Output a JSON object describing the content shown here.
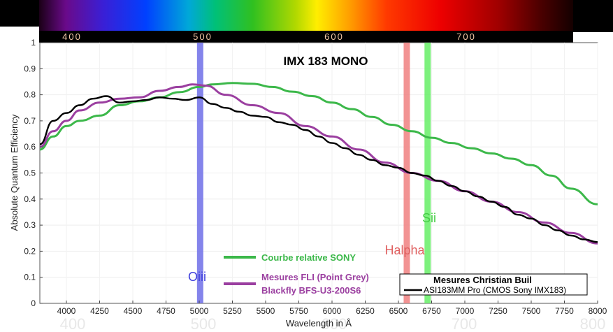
{
  "chart_data": {
    "type": "line",
    "title": "IMX 183 MONO",
    "xlabel": "Wavelength in Å",
    "ylabel": "Absolute Quantum Efficiency",
    "xlim": [
      3800,
      8000
    ],
    "ylim": [
      0,
      1
    ],
    "xticks": [
      4000,
      4250,
      4500,
      4750,
      5000,
      5250,
      5500,
      5750,
      6000,
      6250,
      6500,
      6750,
      7000,
      7250,
      7500,
      7750,
      8000
    ],
    "yticks": [
      0,
      0.1,
      0.2,
      0.3,
      0.4,
      0.5,
      0.6,
      0.7,
      0.8,
      0.9,
      1
    ],
    "grid": true,
    "spectrum_labels": [
      "400",
      "500",
      "600",
      "700"
    ],
    "ghost_labels": [
      "400",
      "500",
      "600",
      "700",
      "800"
    ],
    "series": [
      {
        "name": "Courbe relative SONY",
        "color": "#3cb84a",
        "x": [
          3800,
          3900,
          4000,
          4100,
          4250,
          4400,
          4550,
          4700,
          4850,
          5000,
          5100,
          5250,
          5400,
          5550,
          5700,
          5850,
          6000,
          6150,
          6300,
          6450,
          6600,
          6750,
          6900,
          7050,
          7200,
          7350,
          7500,
          7650,
          7800,
          8000
        ],
        "values": [
          0.59,
          0.64,
          0.68,
          0.7,
          0.72,
          0.76,
          0.775,
          0.79,
          0.81,
          0.83,
          0.84,
          0.845,
          0.842,
          0.83,
          0.812,
          0.795,
          0.77,
          0.745,
          0.715,
          0.685,
          0.66,
          0.635,
          0.615,
          0.595,
          0.575,
          0.555,
          0.53,
          0.49,
          0.44,
          0.38
        ]
      },
      {
        "name": "Mesures FLI (Point Grey) Blackfly BFS-U3-200S6",
        "color": "#9b3fa0",
        "x": [
          3800,
          3900,
          4000,
          4100,
          4250,
          4400,
          4550,
          4700,
          4850,
          4950,
          5050,
          5200,
          5400,
          5600,
          5800,
          6000,
          6200,
          6400,
          6600,
          6800,
          7000,
          7200,
          7400,
          7600,
          7800,
          8000
        ],
        "values": [
          0.6,
          0.66,
          0.7,
          0.74,
          0.77,
          0.785,
          0.79,
          0.815,
          0.83,
          0.84,
          0.835,
          0.8,
          0.76,
          0.73,
          0.68,
          0.64,
          0.59,
          0.54,
          0.5,
          0.47,
          0.43,
          0.39,
          0.35,
          0.31,
          0.27,
          0.23
        ]
      },
      {
        "name": "ASI183MM Pro (CMOS Sony IMX183)",
        "color": "#000000",
        "x": [
          3800,
          3900,
          4000,
          4100,
          4200,
          4300,
          4400,
          4500,
          4600,
          4700,
          4800,
          4900,
          5000,
          5100,
          5200,
          5300,
          5400,
          5500,
          5600,
          5700,
          5800,
          5900,
          6000,
          6100,
          6200,
          6300,
          6400,
          6500,
          6600,
          6700,
          6800,
          6900,
          7000,
          7100,
          7200,
          7300,
          7400,
          7500,
          7600,
          7700,
          7800,
          7900,
          8000
        ],
        "values": [
          0.61,
          0.7,
          0.73,
          0.76,
          0.785,
          0.795,
          0.77,
          0.775,
          0.78,
          0.79,
          0.785,
          0.78,
          0.79,
          0.765,
          0.75,
          0.735,
          0.72,
          0.715,
          0.695,
          0.685,
          0.665,
          0.64,
          0.615,
          0.595,
          0.57,
          0.55,
          0.53,
          0.52,
          0.5,
          0.49,
          0.47,
          0.45,
          0.43,
          0.41,
          0.39,
          0.37,
          0.34,
          0.325,
          0.3,
          0.28,
          0.26,
          0.245,
          0.235
        ]
      }
    ],
    "bands": [
      {
        "name": "Oiii",
        "x": 5007,
        "color": "#6f6fe8"
      },
      {
        "name": "Halpha",
        "x": 6563,
        "color": "#f08080"
      },
      {
        "name": "Sii",
        "x": 6720,
        "color": "#66ee66"
      }
    ],
    "legend": {
      "sony": "Courbe relative SONY",
      "fli_line1": "Mesures FLI (Point Grey)",
      "fli_line2": "Blackfly BFS-U3-200S6",
      "buil_title": "Mesures Christian Buil",
      "buil_entry": "ASI183MM Pro (CMOS Sony IMX183)"
    },
    "colors": {
      "sony": "#3cb84a",
      "fli": "#9b3fa0",
      "buil": "#000000"
    }
  }
}
